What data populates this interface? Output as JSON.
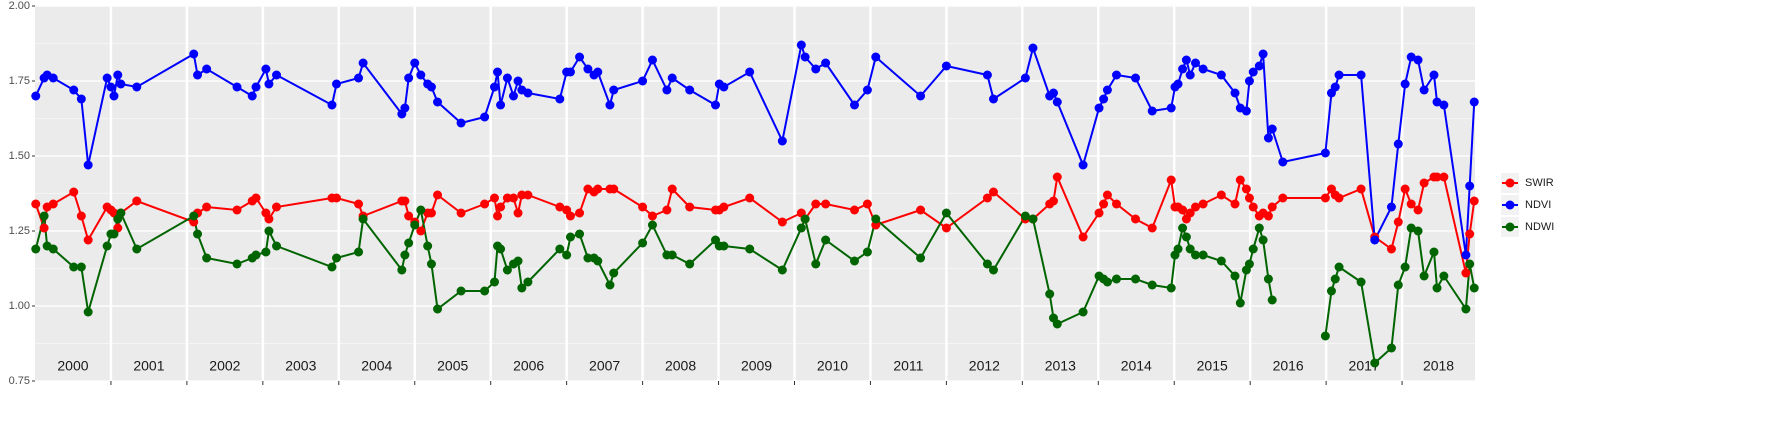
{
  "chart_data": {
    "type": "line",
    "x": [
      2000.01,
      2000.12,
      2000.16,
      2000.24,
      2000.51,
      2000.61,
      2000.7,
      2000.95,
      2001.0,
      2001.04,
      2001.09,
      2001.13,
      2001.34,
      2002.09,
      2002.14,
      2002.26,
      2002.66,
      2002.86,
      2002.91,
      2003.04,
      2003.08,
      2003.18,
      2003.91,
      2003.97,
      2004.26,
      2004.32,
      2004.83,
      2004.87,
      2004.92,
      2005.0,
      2005.08,
      2005.17,
      2005.22,
      2005.3,
      2005.61,
      2005.92,
      2006.05,
      2006.09,
      2006.13,
      2006.22,
      2006.3,
      2006.36,
      2006.41,
      2006.49,
      2006.91,
      2007.0,
      2007.05,
      2007.17,
      2007.28,
      2007.36,
      2007.41,
      2007.57,
      2007.62,
      2008.0,
      2008.13,
      2008.32,
      2008.39,
      2008.62,
      2008.96,
      2009.01,
      2009.07,
      2009.41,
      2009.84,
      2010.09,
      2010.14,
      2010.28,
      2010.41,
      2010.79,
      2010.96,
      2011.07,
      2011.66,
      2012.0,
      2012.54,
      2012.62,
      2013.04,
      2013.14,
      2013.36,
      2013.41,
      2013.46,
      2013.8,
      2014.01,
      2014.07,
      2014.12,
      2014.24,
      2014.49,
      2014.71,
      2014.96,
      2015.01,
      2015.05,
      2015.11,
      2015.16,
      2015.21,
      2015.28,
      2015.38,
      2015.62,
      2015.8,
      2015.87,
      2015.95,
      2015.99,
      2016.04,
      2016.12,
      2016.17,
      2016.24,
      2016.29,
      2016.43,
      2016.99,
      2017.07,
      2017.12,
      2017.17,
      2017.46,
      2017.64,
      2017.86,
      2017.95,
      2018.04,
      2018.12,
      2018.21,
      2018.29,
      2018.42,
      2018.46,
      2018.55,
      2018.84,
      2018.89,
      2018.95
    ],
    "series": [
      {
        "name": "SWIR",
        "color": "#ff0000",
        "values": [
          1.34,
          1.26,
          1.33,
          1.34,
          1.38,
          1.3,
          1.22,
          1.33,
          1.32,
          1.31,
          1.26,
          1.31,
          1.35,
          1.28,
          1.31,
          1.33,
          1.32,
          1.35,
          1.36,
          1.31,
          1.29,
          1.33,
          1.36,
          1.36,
          1.34,
          1.3,
          1.35,
          1.35,
          1.3,
          1.28,
          1.25,
          1.31,
          1.31,
          1.37,
          1.31,
          1.34,
          1.36,
          1.3,
          1.33,
          1.36,
          1.36,
          1.31,
          1.37,
          1.37,
          1.33,
          1.32,
          1.3,
          1.31,
          1.39,
          1.38,
          1.39,
          1.39,
          1.39,
          1.33,
          1.3,
          1.32,
          1.39,
          1.33,
          1.32,
          1.32,
          1.33,
          1.36,
          1.28,
          1.31,
          1.29,
          1.34,
          1.34,
          1.32,
          1.34,
          1.27,
          1.32,
          1.26,
          1.36,
          1.38,
          1.29,
          1.29,
          1.34,
          1.35,
          1.43,
          1.23,
          1.31,
          1.34,
          1.37,
          1.34,
          1.29,
          1.26,
          1.42,
          1.33,
          1.33,
          1.32,
          1.29,
          1.31,
          1.33,
          1.34,
          1.37,
          1.34,
          1.42,
          1.39,
          1.36,
          1.33,
          1.3,
          1.31,
          1.3,
          1.33,
          1.36,
          1.36,
          1.39,
          1.37,
          1.36,
          1.39,
          1.23,
          1.19,
          1.28,
          1.39,
          1.34,
          1.32,
          1.41,
          1.43,
          1.43,
          1.43,
          1.11,
          1.24,
          1.35
        ]
      },
      {
        "name": "NDVI",
        "color": "#0000ff",
        "values": [
          1.7,
          1.76,
          1.77,
          1.76,
          1.72,
          1.69,
          1.47,
          1.76,
          1.73,
          1.7,
          1.77,
          1.74,
          1.73,
          1.84,
          1.77,
          1.79,
          1.73,
          1.7,
          1.73,
          1.79,
          1.74,
          1.77,
          1.67,
          1.74,
          1.76,
          1.81,
          1.64,
          1.66,
          1.76,
          1.81,
          1.77,
          1.74,
          1.73,
          1.68,
          1.61,
          1.63,
          1.73,
          1.78,
          1.67,
          1.76,
          1.7,
          1.75,
          1.72,
          1.71,
          1.69,
          1.78,
          1.78,
          1.83,
          1.79,
          1.77,
          1.78,
          1.67,
          1.72,
          1.75,
          1.82,
          1.72,
          1.76,
          1.72,
          1.67,
          1.74,
          1.73,
          1.78,
          1.55,
          1.87,
          1.83,
          1.79,
          1.81,
          1.67,
          1.72,
          1.83,
          1.7,
          1.8,
          1.77,
          1.69,
          1.76,
          1.86,
          1.7,
          1.71,
          1.68,
          1.47,
          1.66,
          1.69,
          1.72,
          1.77,
          1.76,
          1.65,
          1.66,
          1.73,
          1.74,
          1.79,
          1.82,
          1.77,
          1.81,
          1.79,
          1.77,
          1.71,
          1.66,
          1.65,
          1.75,
          1.78,
          1.8,
          1.84,
          1.56,
          1.59,
          1.48,
          1.51,
          1.71,
          1.73,
          1.77,
          1.77,
          1.22,
          1.33,
          1.54,
          1.74,
          1.83,
          1.82,
          1.72,
          1.77,
          1.68,
          1.67,
          1.17,
          1.4,
          1.68
        ]
      },
      {
        "name": "NDWI",
        "color": "#006400",
        "values": [
          1.19,
          1.3,
          1.2,
          1.19,
          1.13,
          1.13,
          0.98,
          1.2,
          1.24,
          1.24,
          1.29,
          1.31,
          1.19,
          1.3,
          1.24,
          1.16,
          1.14,
          1.16,
          1.17,
          1.18,
          1.25,
          1.2,
          1.13,
          1.16,
          1.18,
          1.29,
          1.12,
          1.17,
          1.21,
          1.27,
          1.32,
          1.2,
          1.14,
          0.99,
          1.05,
          1.05,
          1.08,
          1.2,
          1.19,
          1.12,
          1.14,
          1.15,
          1.06,
          1.08,
          1.19,
          1.17,
          1.23,
          1.24,
          1.16,
          1.16,
          1.15,
          1.07,
          1.11,
          1.21,
          1.27,
          1.17,
          1.17,
          1.14,
          1.22,
          1.2,
          1.2,
          1.19,
          1.12,
          1.26,
          1.29,
          1.14,
          1.22,
          1.15,
          1.18,
          1.29,
          1.16,
          1.31,
          1.14,
          1.12,
          1.3,
          1.29,
          1.04,
          0.96,
          0.94,
          0.98,
          1.1,
          1.09,
          1.08,
          1.09,
          1.09,
          1.07,
          1.06,
          1.17,
          1.19,
          1.26,
          1.23,
          1.19,
          1.17,
          1.17,
          1.15,
          1.1,
          1.01,
          1.12,
          1.14,
          1.19,
          1.26,
          1.22,
          1.09,
          1.02,
          null,
          0.9,
          1.05,
          1.09,
          1.13,
          1.08,
          0.81,
          0.86,
          1.07,
          1.13,
          1.26,
          1.25,
          1.1,
          1.18,
          1.06,
          1.1,
          0.99,
          1.14,
          1.06
        ]
      }
    ],
    "xlim": [
      2000,
      2018.96
    ],
    "ylim": [
      0.75,
      2.0
    ],
    "yticks": [
      {
        "value": 0.75,
        "label": "0.75"
      },
      {
        "value": 1.0,
        "label": "1.00"
      },
      {
        "value": 1.25,
        "label": "1.25"
      },
      {
        "value": 1.5,
        "label": "1.50"
      },
      {
        "value": 1.75,
        "label": "1.75"
      },
      {
        "value": 2.0,
        "label": "2.00"
      }
    ],
    "year_lines": [
      2001,
      2002,
      2003,
      2004,
      2005,
      2006,
      2007,
      2008,
      2009,
      2010,
      2011,
      2012,
      2013,
      2014,
      2015,
      2016,
      2017,
      2018
    ],
    "year_labels": [
      "2000",
      "2001",
      "2002",
      "2003",
      "2004",
      "2005",
      "2006",
      "2007",
      "2008",
      "2009",
      "2010",
      "2011",
      "2012",
      "2013",
      "2014",
      "2015",
      "2016",
      "2017",
      "2018"
    ],
    "grid": true,
    "legend": "right"
  }
}
